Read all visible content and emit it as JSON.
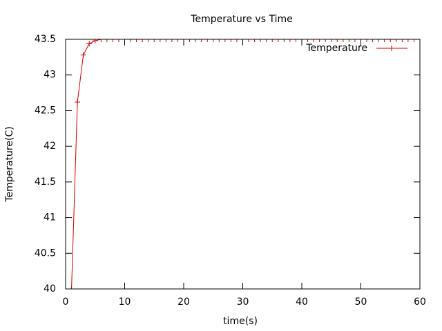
{
  "chart_data": {
    "type": "line",
    "title": "Temperature vs Time",
    "x_label": "time(s)",
    "y_label": "Temperature(C)",
    "x": [
      1,
      2,
      3,
      4,
      5,
      6,
      7,
      8,
      9,
      10,
      11,
      12,
      13,
      14,
      15,
      16,
      17,
      18,
      19,
      20,
      21,
      22,
      23,
      24,
      25,
      26,
      27,
      28,
      29,
      30,
      31,
      32,
      33,
      34,
      35,
      36,
      37,
      38,
      39,
      40,
      41,
      42,
      43,
      44,
      45,
      46,
      47,
      48,
      49,
      50,
      51,
      52,
      53,
      54,
      55,
      56,
      57,
      58,
      59,
      60
    ],
    "series": [
      {
        "name": "Temperature",
        "color": "#cc0000",
        "values": [
          40,
          42.62,
          43.28,
          43.44,
          43.48,
          43.5,
          43.5,
          43.5,
          43.5,
          43.5,
          43.5,
          43.5,
          43.5,
          43.5,
          43.5,
          43.5,
          43.5,
          43.5,
          43.5,
          43.5,
          43.5,
          43.5,
          43.5,
          43.5,
          43.5,
          43.5,
          43.5,
          43.5,
          43.5,
          43.5,
          43.5,
          43.5,
          43.5,
          43.5,
          43.5,
          43.5,
          43.5,
          43.5,
          43.5,
          43.5,
          43.5,
          43.5,
          43.5,
          43.5,
          43.5,
          43.5,
          43.5,
          43.5,
          43.5,
          43.5,
          43.5,
          43.5,
          43.5,
          43.5,
          43.5,
          43.5,
          43.5,
          43.5,
          43.5,
          43.5
        ]
      }
    ],
    "xlim": [
      0,
      60
    ],
    "xticks": [
      0,
      10,
      20,
      30,
      40,
      50,
      60
    ],
    "ylim": [
      40,
      43.5
    ],
    "yticks": [
      40,
      40.5,
      41,
      41.5,
      42,
      42.5,
      43,
      43.5
    ],
    "legend": "top-right"
  }
}
